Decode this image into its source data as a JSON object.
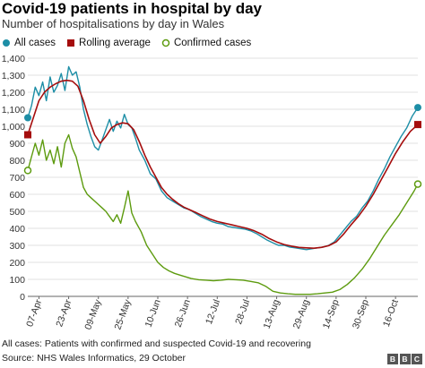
{
  "title": "Covid-19 patients in hospital by day",
  "subtitle": "Number of hospitalisations by day in Wales",
  "footnote": "All cases: Patients with confirmed and suspected Covid-19 and recovering",
  "source": "Source: NHS Wales Informatics, 29 October",
  "logo": [
    "B",
    "B",
    "C"
  ],
  "legend": [
    {
      "label": "All cases",
      "marker": "circle",
      "color": "#1d8ea6"
    },
    {
      "label": "Rolling average",
      "marker": "square",
      "color": "#a50d0d"
    },
    {
      "label": "Confirmed cases",
      "marker": "open-circle",
      "color": "#5d9b0f"
    }
  ],
  "chart_data": {
    "type": "line",
    "title": "Covid-19 patients in hospital by day",
    "subtitle": "Number of hospitalisations by day in Wales",
    "xlabel": "",
    "ylabel": "",
    "x_ticks": [
      "07-Apr",
      "23-Apr",
      "09-May",
      "25-May",
      "10-Jun",
      "26-Jun",
      "12-Jul",
      "28-Jul",
      "13-Aug",
      "29-Aug",
      "14-Sep",
      "30-Sep",
      "16-Oct"
    ],
    "y_ticks": [
      "0",
      "100",
      "200",
      "300",
      "400",
      "500",
      "600",
      "700",
      "800",
      "900",
      "1,000",
      "1,100",
      "1,200",
      "1,300",
      "1,400"
    ],
    "ylim": [
      0,
      1400
    ],
    "x_range": [
      "2020-04-01",
      "2020-10-28"
    ],
    "grid": true,
    "legend_position": "top",
    "series": [
      {
        "name": "All cases",
        "color": "#1d8ea6",
        "points": [
          [
            "2020-04-01",
            1050
          ],
          [
            "2020-04-03",
            1120
          ],
          [
            "2020-04-05",
            1230
          ],
          [
            "2020-04-07",
            1180
          ],
          [
            "2020-04-09",
            1260
          ],
          [
            "2020-04-11",
            1150
          ],
          [
            "2020-04-13",
            1290
          ],
          [
            "2020-04-15",
            1200
          ],
          [
            "2020-04-17",
            1240
          ],
          [
            "2020-04-19",
            1310
          ],
          [
            "2020-04-21",
            1210
          ],
          [
            "2020-04-23",
            1350
          ],
          [
            "2020-04-25",
            1300
          ],
          [
            "2020-04-27",
            1320
          ],
          [
            "2020-04-29",
            1230
          ],
          [
            "2020-05-01",
            1100
          ],
          [
            "2020-05-03",
            1010
          ],
          [
            "2020-05-05",
            940
          ],
          [
            "2020-05-07",
            880
          ],
          [
            "2020-05-09",
            860
          ],
          [
            "2020-05-11",
            920
          ],
          [
            "2020-05-13",
            980
          ],
          [
            "2020-05-15",
            1040
          ],
          [
            "2020-05-17",
            970
          ],
          [
            "2020-05-19",
            1030
          ],
          [
            "2020-05-21",
            990
          ],
          [
            "2020-05-23",
            1070
          ],
          [
            "2020-05-25",
            1010
          ],
          [
            "2020-05-27",
            990
          ],
          [
            "2020-05-29",
            930
          ],
          [
            "2020-05-31",
            860
          ],
          [
            "2020-06-03",
            800
          ],
          [
            "2020-06-06",
            720
          ],
          [
            "2020-06-09",
            690
          ],
          [
            "2020-06-12",
            620
          ],
          [
            "2020-06-15",
            580
          ],
          [
            "2020-06-18",
            560
          ],
          [
            "2020-06-21",
            540
          ],
          [
            "2020-06-24",
            520
          ],
          [
            "2020-06-27",
            510
          ],
          [
            "2020-06-30",
            490
          ],
          [
            "2020-07-03",
            470
          ],
          [
            "2020-07-06",
            455
          ],
          [
            "2020-07-09",
            440
          ],
          [
            "2020-07-12",
            430
          ],
          [
            "2020-07-15",
            425
          ],
          [
            "2020-07-18",
            410
          ],
          [
            "2020-07-21",
            405
          ],
          [
            "2020-07-24",
            400
          ],
          [
            "2020-07-27",
            395
          ],
          [
            "2020-07-30",
            385
          ],
          [
            "2020-08-02",
            370
          ],
          [
            "2020-08-05",
            350
          ],
          [
            "2020-08-08",
            330
          ],
          [
            "2020-08-11",
            315
          ],
          [
            "2020-08-14",
            300
          ],
          [
            "2020-08-17",
            300
          ],
          [
            "2020-08-20",
            290
          ],
          [
            "2020-08-23",
            285
          ],
          [
            "2020-08-26",
            280
          ],
          [
            "2020-08-29",
            275
          ],
          [
            "2020-09-01",
            280
          ],
          [
            "2020-09-04",
            285
          ],
          [
            "2020-09-07",
            290
          ],
          [
            "2020-09-10",
            300
          ],
          [
            "2020-09-13",
            320
          ],
          [
            "2020-09-16",
            360
          ],
          [
            "2020-09-19",
            400
          ],
          [
            "2020-09-22",
            440
          ],
          [
            "2020-09-25",
            470
          ],
          [
            "2020-09-28",
            520
          ],
          [
            "2020-10-01",
            560
          ],
          [
            "2020-10-04",
            620
          ],
          [
            "2020-10-07",
            690
          ],
          [
            "2020-10-10",
            750
          ],
          [
            "2020-10-13",
            820
          ],
          [
            "2020-10-16",
            880
          ],
          [
            "2020-10-19",
            940
          ],
          [
            "2020-10-22",
            990
          ],
          [
            "2020-10-25",
            1060
          ],
          [
            "2020-10-28",
            1110
          ]
        ]
      },
      {
        "name": "Rolling average",
        "color": "#a50d0d",
        "points": [
          [
            "2020-04-01",
            950
          ],
          [
            "2020-04-04",
            1050
          ],
          [
            "2020-04-07",
            1150
          ],
          [
            "2020-04-10",
            1200
          ],
          [
            "2020-04-13",
            1230
          ],
          [
            "2020-04-16",
            1250
          ],
          [
            "2020-04-19",
            1265
          ],
          [
            "2020-04-22",
            1270
          ],
          [
            "2020-04-25",
            1265
          ],
          [
            "2020-04-28",
            1235
          ],
          [
            "2020-05-01",
            1150
          ],
          [
            "2020-05-04",
            1040
          ],
          [
            "2020-05-07",
            950
          ],
          [
            "2020-05-10",
            900
          ],
          [
            "2020-05-13",
            940
          ],
          [
            "2020-05-16",
            990
          ],
          [
            "2020-05-19",
            1010
          ],
          [
            "2020-05-22",
            1020
          ],
          [
            "2020-05-25",
            1015
          ],
          [
            "2020-05-28",
            980
          ],
          [
            "2020-05-31",
            910
          ],
          [
            "2020-06-03",
            830
          ],
          [
            "2020-06-06",
            760
          ],
          [
            "2020-06-09",
            700
          ],
          [
            "2020-06-12",
            640
          ],
          [
            "2020-06-15",
            600
          ],
          [
            "2020-06-18",
            570
          ],
          [
            "2020-06-21",
            545
          ],
          [
            "2020-06-24",
            525
          ],
          [
            "2020-06-27",
            510
          ],
          [
            "2020-06-30",
            495
          ],
          [
            "2020-07-04",
            475
          ],
          [
            "2020-07-08",
            455
          ],
          [
            "2020-07-12",
            440
          ],
          [
            "2020-07-16",
            430
          ],
          [
            "2020-07-20",
            420
          ],
          [
            "2020-07-24",
            410
          ],
          [
            "2020-07-28",
            400
          ],
          [
            "2020-08-01",
            385
          ],
          [
            "2020-08-05",
            365
          ],
          [
            "2020-08-09",
            340
          ],
          [
            "2020-08-13",
            320
          ],
          [
            "2020-08-17",
            305
          ],
          [
            "2020-08-21",
            295
          ],
          [
            "2020-08-25",
            288
          ],
          [
            "2020-08-29",
            285
          ],
          [
            "2020-09-02",
            283
          ],
          [
            "2020-09-06",
            288
          ],
          [
            "2020-09-10",
            298
          ],
          [
            "2020-09-14",
            320
          ],
          [
            "2020-09-18",
            365
          ],
          [
            "2020-09-22",
            420
          ],
          [
            "2020-09-26",
            470
          ],
          [
            "2020-09-30",
            530
          ],
          [
            "2020-10-04",
            600
          ],
          [
            "2020-10-08",
            680
          ],
          [
            "2020-10-12",
            760
          ],
          [
            "2020-10-16",
            840
          ],
          [
            "2020-10-20",
            910
          ],
          [
            "2020-10-24",
            970
          ],
          [
            "2020-10-28",
            1010
          ]
        ]
      },
      {
        "name": "Confirmed cases",
        "color": "#5d9b0f",
        "points": [
          [
            "2020-04-01",
            740
          ],
          [
            "2020-04-03",
            820
          ],
          [
            "2020-04-05",
            900
          ],
          [
            "2020-04-07",
            830
          ],
          [
            "2020-04-09",
            920
          ],
          [
            "2020-04-11",
            800
          ],
          [
            "2020-04-13",
            860
          ],
          [
            "2020-04-15",
            780
          ],
          [
            "2020-04-17",
            880
          ],
          [
            "2020-04-19",
            760
          ],
          [
            "2020-04-21",
            900
          ],
          [
            "2020-04-23",
            950
          ],
          [
            "2020-04-25",
            870
          ],
          [
            "2020-04-27",
            820
          ],
          [
            "2020-04-29",
            730
          ],
          [
            "2020-05-01",
            640
          ],
          [
            "2020-05-03",
            600
          ],
          [
            "2020-05-05",
            580
          ],
          [
            "2020-05-07",
            560
          ],
          [
            "2020-05-09",
            540
          ],
          [
            "2020-05-11",
            520
          ],
          [
            "2020-05-13",
            500
          ],
          [
            "2020-05-15",
            470
          ],
          [
            "2020-05-17",
            440
          ],
          [
            "2020-05-19",
            480
          ],
          [
            "2020-05-21",
            430
          ],
          [
            "2020-05-23",
            520
          ],
          [
            "2020-05-25",
            620
          ],
          [
            "2020-05-27",
            490
          ],
          [
            "2020-05-29",
            440
          ],
          [
            "2020-06-01",
            380
          ],
          [
            "2020-06-04",
            300
          ],
          [
            "2020-06-07",
            250
          ],
          [
            "2020-06-10",
            200
          ],
          [
            "2020-06-13",
            170
          ],
          [
            "2020-06-16",
            150
          ],
          [
            "2020-06-19",
            135
          ],
          [
            "2020-06-22",
            125
          ],
          [
            "2020-06-25",
            115
          ],
          [
            "2020-06-28",
            105
          ],
          [
            "2020-07-02",
            98
          ],
          [
            "2020-07-06",
            95
          ],
          [
            "2020-07-10",
            92
          ],
          [
            "2020-07-14",
            95
          ],
          [
            "2020-07-18",
            100
          ],
          [
            "2020-07-22",
            98
          ],
          [
            "2020-07-26",
            95
          ],
          [
            "2020-07-30",
            88
          ],
          [
            "2020-08-03",
            80
          ],
          [
            "2020-08-07",
            60
          ],
          [
            "2020-08-11",
            30
          ],
          [
            "2020-08-15",
            20
          ],
          [
            "2020-08-19",
            15
          ],
          [
            "2020-08-23",
            12
          ],
          [
            "2020-08-27",
            12
          ],
          [
            "2020-08-31",
            12
          ],
          [
            "2020-09-04",
            15
          ],
          [
            "2020-09-08",
            20
          ],
          [
            "2020-09-12",
            25
          ],
          [
            "2020-09-16",
            40
          ],
          [
            "2020-09-20",
            70
          ],
          [
            "2020-09-24",
            110
          ],
          [
            "2020-09-28",
            160
          ],
          [
            "2020-10-02",
            220
          ],
          [
            "2020-10-06",
            290
          ],
          [
            "2020-10-10",
            360
          ],
          [
            "2020-10-14",
            420
          ],
          [
            "2020-10-18",
            480
          ],
          [
            "2020-10-22",
            550
          ],
          [
            "2020-10-26",
            620
          ],
          [
            "2020-10-28",
            660
          ]
        ]
      }
    ]
  }
}
